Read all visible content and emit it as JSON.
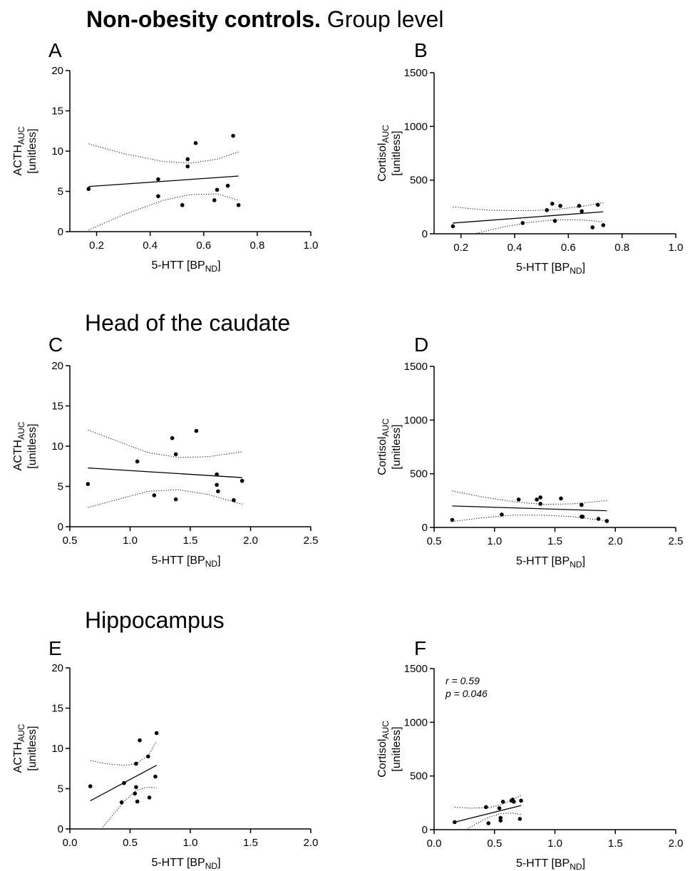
{
  "headings": {
    "group": {
      "bold": "Non-obesity controls.",
      "rest": " Group level"
    },
    "caudate": "Head of the caudate",
    "hippocampus": "Hippocampus"
  },
  "units": {
    "bracket": "[unitless]",
    "x_main": "5-HTT [BP",
    "x_sub": "ND",
    "x_end": "]"
  },
  "chart_data": [
    {
      "panel": "A",
      "type": "scatter",
      "ylabel_main": "ACTH",
      "ylabel_sub": "AUC",
      "xlim": [
        0.1,
        1.0
      ],
      "xticks": [
        0.2,
        0.4,
        0.6,
        0.8,
        1.0
      ],
      "xtick_labels": [
        "0.2",
        "0.4",
        "0.6",
        "0.8",
        "1.0"
      ],
      "ylim": [
        0,
        20
      ],
      "yticks": [
        0,
        5,
        10,
        15,
        20
      ],
      "ytick_labels": [
        "0",
        "5",
        "10",
        "15",
        "20"
      ],
      "points": [
        [
          0.17,
          5.3
        ],
        [
          0.43,
          6.5
        ],
        [
          0.43,
          4.4
        ],
        [
          0.52,
          3.3
        ],
        [
          0.54,
          9.0
        ],
        [
          0.54,
          8.1
        ],
        [
          0.57,
          11.0
        ],
        [
          0.64,
          3.9
        ],
        [
          0.65,
          5.2
        ],
        [
          0.69,
          5.7
        ],
        [
          0.71,
          11.9
        ],
        [
          0.73,
          3.3
        ]
      ],
      "fit": {
        "x": [
          0.17,
          0.73
        ],
        "y": [
          5.6,
          6.9
        ]
      },
      "ci_upper": {
        "x": [
          0.17,
          0.3,
          0.45,
          0.55,
          0.65,
          0.73
        ],
        "y": [
          10.9,
          9.7,
          8.7,
          8.5,
          9.0,
          9.9
        ]
      },
      "ci_lower": {
        "x": [
          0.17,
          0.3,
          0.45,
          0.55,
          0.65,
          0.73
        ],
        "y": [
          0.2,
          2.1,
          3.9,
          4.6,
          4.7,
          3.9
        ]
      },
      "annotation": []
    },
    {
      "panel": "B",
      "type": "scatter",
      "ylabel_main": "Cortisol",
      "ylabel_sub": "AUC",
      "xlim": [
        0.1,
        1.0
      ],
      "xticks": [
        0.2,
        0.4,
        0.6,
        0.8,
        1.0
      ],
      "xtick_labels": [
        "0.2",
        "0.4",
        "0.6",
        "0.8",
        "1.0"
      ],
      "ylim": [
        0,
        1500
      ],
      "yticks": [
        0,
        500,
        1000,
        1500
      ],
      "ytick_labels": [
        "0",
        "500",
        "1000",
        "1500"
      ],
      "points": [
        [
          0.17,
          70
        ],
        [
          0.43,
          100
        ],
        [
          0.52,
          220
        ],
        [
          0.54,
          280
        ],
        [
          0.55,
          120
        ],
        [
          0.57,
          260
        ],
        [
          0.64,
          260
        ],
        [
          0.65,
          210
        ],
        [
          0.69,
          60
        ],
        [
          0.71,
          270
        ],
        [
          0.73,
          80
        ]
      ],
      "fit": {
        "x": [
          0.17,
          0.73
        ],
        "y": [
          100,
          205
        ]
      },
      "ci_upper": {
        "x": [
          0.17,
          0.3,
          0.45,
          0.55,
          0.65,
          0.73
        ],
        "y": [
          250,
          220,
          215,
          225,
          255,
          290
        ]
      },
      "ci_lower": {
        "x": [
          0.17,
          0.25,
          0.35,
          0.45,
          0.55,
          0.65,
          0.73
        ],
        "y": [
          -50,
          0,
          60,
          105,
          130,
          130,
          110
        ]
      },
      "annotation": []
    },
    {
      "panel": "C",
      "type": "scatter",
      "ylabel_main": "ACTH",
      "ylabel_sub": "AUC",
      "xlim": [
        0.5,
        2.5
      ],
      "xticks": [
        0.5,
        1.0,
        1.5,
        2.0,
        2.5
      ],
      "xtick_labels": [
        "0.5",
        "1.0",
        "1.5",
        "2.0",
        "2.5"
      ],
      "ylim": [
        0,
        20
      ],
      "yticks": [
        0,
        5,
        10,
        15,
        20
      ],
      "ytick_labels": [
        "0",
        "5",
        "10",
        "15",
        "20"
      ],
      "points": [
        [
          0.65,
          5.3
        ],
        [
          1.06,
          8.1
        ],
        [
          1.2,
          3.9
        ],
        [
          1.35,
          11.0
        ],
        [
          1.38,
          9.0
        ],
        [
          1.38,
          3.4
        ],
        [
          1.55,
          11.9
        ],
        [
          1.72,
          6.5
        ],
        [
          1.72,
          5.2
        ],
        [
          1.73,
          4.4
        ],
        [
          1.86,
          3.3
        ],
        [
          1.93,
          5.7
        ]
      ],
      "fit": {
        "x": [
          0.65,
          1.93
        ],
        "y": [
          7.3,
          6.1
        ]
      },
      "ci_upper": {
        "x": [
          0.65,
          0.9,
          1.15,
          1.4,
          1.65,
          1.93
        ],
        "y": [
          12.0,
          10.6,
          9.2,
          8.6,
          8.7,
          9.3
        ]
      },
      "ci_lower": {
        "x": [
          0.65,
          0.9,
          1.15,
          1.4,
          1.65,
          1.93
        ],
        "y": [
          2.4,
          3.4,
          4.4,
          4.6,
          4.0,
          2.8
        ]
      },
      "annotation": []
    },
    {
      "panel": "D",
      "type": "scatter",
      "ylabel_main": "Cortisol",
      "ylabel_sub": "AUC",
      "xlim": [
        0.5,
        2.5
      ],
      "xticks": [
        0.5,
        1.0,
        1.5,
        2.0,
        2.5
      ],
      "xtick_labels": [
        "0.5",
        "1.0",
        "1.5",
        "2.0",
        "2.5"
      ],
      "ylim": [
        0,
        1500
      ],
      "yticks": [
        0,
        500,
        1000,
        1500
      ],
      "ytick_labels": [
        "0",
        "500",
        "1000",
        "1500"
      ],
      "points": [
        [
          0.65,
          70
        ],
        [
          1.06,
          120
        ],
        [
          1.2,
          260
        ],
        [
          1.35,
          260
        ],
        [
          1.38,
          280
        ],
        [
          1.38,
          220
        ],
        [
          1.55,
          270
        ],
        [
          1.72,
          210
        ],
        [
          1.72,
          100
        ],
        [
          1.73,
          100
        ],
        [
          1.86,
          80
        ],
        [
          1.93,
          60
        ]
      ],
      "fit": {
        "x": [
          0.65,
          1.93
        ],
        "y": [
          200,
          155
        ]
      },
      "ci_upper": {
        "x": [
          0.65,
          0.9,
          1.15,
          1.4,
          1.65,
          1.93
        ],
        "y": [
          340,
          285,
          240,
          215,
          220,
          250
        ]
      },
      "ci_lower": {
        "x": [
          0.65,
          0.9,
          1.15,
          1.4,
          1.65,
          1.93
        ],
        "y": [
          55,
          90,
          115,
          115,
          100,
          60
        ]
      },
      "annotation": []
    },
    {
      "panel": "E",
      "type": "scatter",
      "ylabel_main": "ACTH",
      "ylabel_sub": "AUC",
      "xlim": [
        0.0,
        2.0
      ],
      "xticks": [
        0.0,
        0.5,
        1.0,
        1.5,
        2.0
      ],
      "xtick_labels": [
        "0.0",
        "0.5",
        "1.0",
        "1.5",
        "2.0"
      ],
      "ylim": [
        0,
        20
      ],
      "yticks": [
        0,
        5,
        10,
        15,
        20
      ],
      "ytick_labels": [
        "0",
        "5",
        "10",
        "15",
        "20"
      ],
      "points": [
        [
          0.17,
          5.3
        ],
        [
          0.43,
          3.3
        ],
        [
          0.45,
          5.7
        ],
        [
          0.54,
          4.4
        ],
        [
          0.55,
          8.1
        ],
        [
          0.55,
          5.2
        ],
        [
          0.56,
          3.4
        ],
        [
          0.58,
          11.0
        ],
        [
          0.65,
          9.0
        ],
        [
          0.66,
          3.9
        ],
        [
          0.71,
          6.5
        ],
        [
          0.72,
          11.9
        ]
      ],
      "fit": {
        "x": [
          0.17,
          0.72
        ],
        "y": [
          3.5,
          7.9
        ]
      },
      "ci_upper": {
        "x": [
          0.17,
          0.3,
          0.45,
          0.55,
          0.65,
          0.72
        ],
        "y": [
          8.5,
          8.1,
          7.9,
          8.1,
          9.1,
          10.9
        ]
      },
      "ci_lower": {
        "x": [
          0.26,
          0.35,
          0.45,
          0.55,
          0.65,
          0.72
        ],
        "y": [
          0.0,
          1.6,
          3.4,
          4.8,
          5.2,
          5.1
        ]
      },
      "annotation": []
    },
    {
      "panel": "F",
      "type": "scatter",
      "ylabel_main": "Cortisol",
      "ylabel_sub": "AUC",
      "xlim": [
        0.0,
        2.0
      ],
      "xticks": [
        0.0,
        0.5,
        1.0,
        1.5,
        2.0
      ],
      "xtick_labels": [
        "0.0",
        "0.5",
        "1.0",
        "1.5",
        "2.0"
      ],
      "ylim": [
        0,
        1500
      ],
      "yticks": [
        0,
        500,
        1000,
        1500
      ],
      "ytick_labels": [
        "0",
        "500",
        "1000",
        "1500"
      ],
      "points": [
        [
          0.17,
          70
        ],
        [
          0.43,
          210
        ],
        [
          0.45,
          60
        ],
        [
          0.54,
          200
        ],
        [
          0.55,
          110
        ],
        [
          0.55,
          85
        ],
        [
          0.57,
          260
        ],
        [
          0.64,
          270
        ],
        [
          0.65,
          280
        ],
        [
          0.66,
          260
        ],
        [
          0.71,
          100
        ],
        [
          0.72,
          270
        ]
      ],
      "fit": {
        "x": [
          0.17,
          0.72
        ],
        "y": [
          70,
          225
        ]
      },
      "ci_upper": {
        "x": [
          0.17,
          0.3,
          0.45,
          0.55,
          0.65,
          0.72
        ],
        "y": [
          210,
          200,
          205,
          230,
          280,
          320
        ]
      },
      "ci_lower": {
        "x": [
          0.26,
          0.35,
          0.45,
          0.55,
          0.65,
          0.72
        ],
        "y": [
          0,
          55,
          115,
          150,
          155,
          140
        ]
      },
      "annotation": [
        "r = 0.59",
        "p = 0.046"
      ]
    }
  ]
}
